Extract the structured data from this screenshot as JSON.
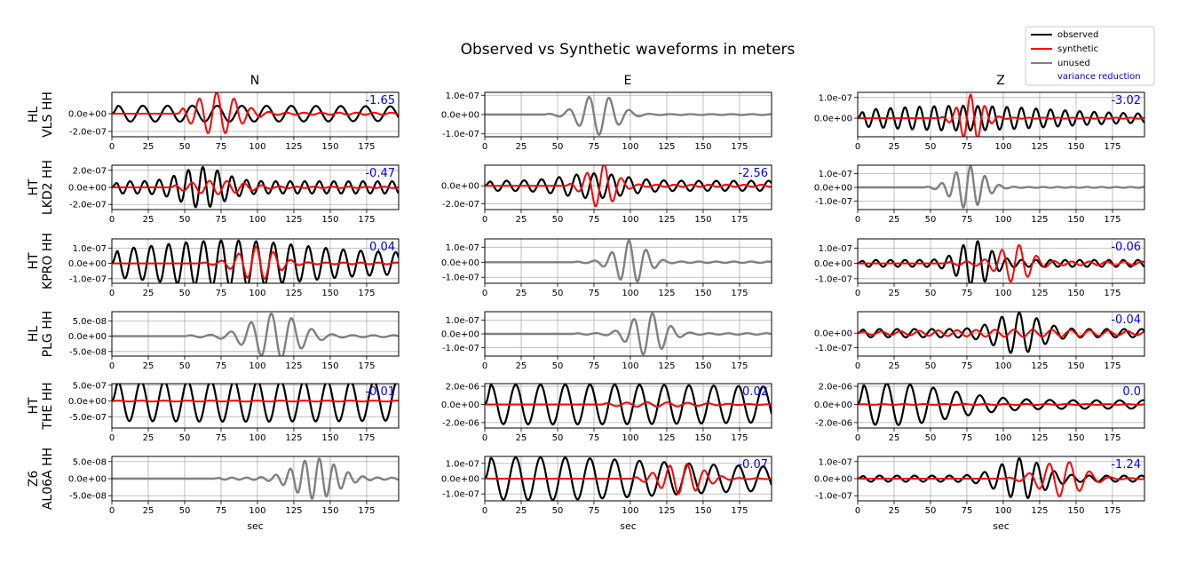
{
  "title": "Observed vs Synthetic waveforms in meters",
  "column_titles": [
    "N",
    "E",
    "Z"
  ],
  "x_label": "sec",
  "legend": {
    "observed": "observed",
    "synthetic": "synthetic",
    "unused": "unused",
    "variance_reduction": "variance reduction"
  },
  "colors": {
    "observed": "#000000",
    "synthetic": "#ff0000",
    "unused": "#808080",
    "variance_reduction": "#0000ff",
    "grid": "#b0b0b0"
  },
  "chart_data": {
    "type": "line",
    "x_range": [
      0,
      197
    ],
    "x_ticks": [
      0,
      25,
      50,
      75,
      100,
      125,
      150,
      175
    ],
    "x_tick_labels": [
      "0",
      "25",
      "50",
      "75",
      "100",
      "125",
      "150",
      "175"
    ],
    "grid": true,
    "legend_position": "top-right",
    "stations": [
      {
        "label_line1": "HL",
        "label_line2": "VLS HH",
        "panels": [
          {
            "component": "N",
            "used": true,
            "vr": "-1.65",
            "y_ticks": [
              0,
              -2e-07
            ],
            "y_tick_labels": [
              "0.0e+00",
              "-2.0e-07"
            ],
            "ylim": [
              -2.6e-07,
              2.4e-07
            ],
            "observed": {
              "amp": 9e-08,
              "period": 17,
              "start": 0,
              "peak": 55,
              "width": 180,
              "base": 0.7
            },
            "synthetic": {
              "amp": 2.4e-07,
              "period": 12,
              "start": 45,
              "peak": 72,
              "width": 14,
              "base": 0.05
            }
          },
          {
            "component": "E",
            "used": false,
            "vr": "",
            "y_ticks": [
              1e-07,
              0,
              -1e-07
            ],
            "y_tick_labels": [
              "1.0e-07",
              "0.0e+00",
              "-1.0e-07"
            ],
            "ylim": [
              -1.15e-07,
              1.15e-07
            ],
            "observed": {
              "amp": 1.05e-07,
              "period": 14,
              "start": 40,
              "peak": 78,
              "width": 12,
              "base": 0.02
            }
          },
          {
            "component": "Z",
            "used": true,
            "vr": "-3.02",
            "y_ticks": [
              1e-07,
              0
            ],
            "y_tick_labels": [
              "1.0e-07",
              "0.0e+00"
            ],
            "ylim": [
              -9e-08,
              1.25e-07
            ],
            "observed": {
              "amp": 6e-08,
              "period": 10,
              "start": 0,
              "peak": 70,
              "width": 60,
              "base": 0.3
            },
            "synthetic": {
              "amp": 1.15e-07,
              "period": 10,
              "start": 55,
              "peak": 78,
              "width": 8,
              "base": 0.02
            }
          }
        ]
      },
      {
        "label_line1": "HT",
        "label_line2": "LKD2 HH",
        "panels": [
          {
            "component": "N",
            "used": true,
            "vr": "-0.47",
            "y_ticks": [
              2e-07,
              0,
              -2e-07
            ],
            "y_tick_labels": [
              "2.0e-07",
              "0.0e+00",
              "-2.0e-07"
            ],
            "ylim": [
              -2.6e-07,
              2.6e-07
            ],
            "observed": {
              "amp": 2.4e-07,
              "period": 10,
              "start": 0,
              "peak": 62,
              "width": 14,
              "base": 0.3
            },
            "synthetic": {
              "amp": 8e-08,
              "period": 12,
              "start": 40,
              "peak": 72,
              "width": 18,
              "base": 0.1
            }
          },
          {
            "component": "E",
            "used": true,
            "vr": "-2.56",
            "y_ticks": [
              0,
              -2e-07
            ],
            "y_tick_labels": [
              "0.0e+00",
              "-2.0e-07"
            ],
            "ylim": [
              -2.65e-07,
              2.3e-07
            ],
            "observed": {
              "amp": 1.4e-07,
              "period": 12,
              "start": 0,
              "peak": 75,
              "width": 20,
              "base": 0.4
            },
            "synthetic": {
              "amp": 2.5e-07,
              "period": 12,
              "start": 55,
              "peak": 80,
              "width": 9,
              "base": 0.05
            }
          },
          {
            "component": "Z",
            "used": false,
            "vr": "",
            "y_ticks": [
              1e-07,
              0,
              -1e-07
            ],
            "y_tick_labels": [
              "1.0e-07",
              "0.0e+00",
              "-1.0e-07"
            ],
            "ylim": [
              -1.6e-07,
              1.6e-07
            ],
            "observed": {
              "amp": 1.55e-07,
              "period": 10,
              "start": 45,
              "peak": 76,
              "width": 10,
              "base": 0.02
            }
          }
        ]
      },
      {
        "label_line1": "HT",
        "label_line2": "KPRO HH",
        "panels": [
          {
            "component": "N",
            "used": true,
            "vr": "0.04",
            "y_ticks": [
              1e-07,
              0,
              -1e-07
            ],
            "y_tick_labels": [
              "1.0e-07",
              "0.0e+00",
              "-1.0e-07"
            ],
            "ylim": [
              -1.3e-07,
              1.6e-07
            ],
            "observed": {
              "amp": 1.5e-07,
              "period": 12,
              "start": 0,
              "peak": 80,
              "width": 50,
              "base": 0.45
            },
            "synthetic": {
              "amp": 1.1e-07,
              "period": 12,
              "start": 60,
              "peak": 100,
              "width": 12,
              "base": 0.05
            }
          },
          {
            "component": "E",
            "used": false,
            "vr": "",
            "y_ticks": [
              1e-07,
              0,
              -1e-07
            ],
            "y_tick_labels": [
              "1.0e-07",
              "0.0e+00",
              "-1.0e-07"
            ],
            "ylim": [
              -1.4e-07,
              1.55e-07
            ],
            "observed": {
              "amp": 1.45e-07,
              "period": 12,
              "start": 60,
              "peak": 100,
              "width": 10,
              "base": 0.03
            }
          },
          {
            "component": "Z",
            "used": true,
            "vr": "-0.06",
            "y_ticks": [
              1e-07,
              0,
              -1e-07
            ],
            "y_tick_labels": [
              "1.0e-07",
              "0.0e+00",
              "-1.0e-07"
            ],
            "ylim": [
              -1.3e-07,
              1.6e-07
            ],
            "observed": {
              "amp": 1.5e-07,
              "period": 10,
              "start": 0,
              "peak": 80,
              "width": 10,
              "base": 0.15
            },
            "synthetic": {
              "amp": 1.25e-07,
              "period": 12,
              "start": 60,
              "peak": 108,
              "width": 10,
              "base": 0.1
            }
          }
        ]
      },
      {
        "label_line1": "HL",
        "label_line2": "PLG HH",
        "panels": [
          {
            "component": "N",
            "used": false,
            "vr": "",
            "y_ticks": [
              5e-08,
              0,
              -5e-08
            ],
            "y_tick_labels": [
              "5.0e-08",
              "0.0e+00",
              "-5.0e-08"
            ],
            "ylim": [
              -6.5e-08,
              8e-08
            ],
            "observed": {
              "amp": 7.5e-08,
              "period": 14,
              "start": 50,
              "peak": 112,
              "width": 16,
              "base": 0.04
            }
          },
          {
            "component": "E",
            "used": false,
            "vr": "",
            "y_ticks": [
              1e-07,
              0,
              -1e-07
            ],
            "y_tick_labels": [
              "1.0e-07",
              "0.0e+00",
              "-1.0e-07"
            ],
            "ylim": [
              -1.6e-07,
              1.6e-07
            ],
            "observed": {
              "amp": 1.55e-07,
              "period": 13,
              "start": 60,
              "peak": 112,
              "width": 11,
              "base": 0.03
            }
          },
          {
            "component": "Z",
            "used": true,
            "vr": "-0.04",
            "y_ticks": [
              0,
              -1e-07
            ],
            "y_tick_labels": [
              "0.0e+00",
              "-1.0e-07"
            ],
            "ylim": [
              -1.6e-07,
              1.5e-07
            ],
            "observed": {
              "amp": 1.45e-07,
              "period": 12,
              "start": 0,
              "peak": 110,
              "width": 14,
              "base": 0.2
            },
            "synthetic": {
              "amp": 2.5e-08,
              "period": 13,
              "start": 0,
              "peak": 110,
              "width": 60,
              "base": 0.3
            }
          }
        ]
      },
      {
        "label_line1": "HT",
        "label_line2": "THE HH",
        "panels": [
          {
            "component": "N",
            "used": true,
            "vr": "-0.01",
            "y_ticks": [
              5e-07,
              0,
              -5e-07
            ],
            "y_tick_labels": [
              "5.0e-07",
              "0.0e+00",
              "-5.0e-07"
            ],
            "ylim": [
              -8.5e-07,
              5.5e-07
            ],
            "observed": {
              "amp": 6.5e-07,
              "period": 16,
              "start": 0,
              "peak": 90,
              "width": 200,
              "base": 0.6
            },
            "synthetic": {
              "amp": 1.5e-08,
              "period": 16,
              "start": 0,
              "peak": 90,
              "width": 200,
              "base": 0.5
            }
          },
          {
            "component": "E",
            "used": true,
            "vr": "0.02",
            "y_ticks": [
              2e-06,
              0,
              -2e-06
            ],
            "y_tick_labels": [
              "2.0e-06",
              "0.0e+00",
              "-2.0e-06"
            ],
            "ylim": [
              -2.6e-06,
              2.3e-06
            ],
            "observed": {
              "amp": 2.2e-06,
              "period": 17,
              "start": 0,
              "peak": 60,
              "width": 200,
              "base": 0.5
            },
            "synthetic": {
              "amp": 2.5e-07,
              "period": 14,
              "start": 80,
              "peak": 115,
              "width": 30,
              "base": 0.1
            }
          },
          {
            "component": "Z",
            "used": true,
            "vr": "0.0",
            "y_ticks": [
              2e-06,
              0,
              -2e-06
            ],
            "y_tick_labels": [
              "2.0e-06",
              "0.0e+00",
              "-2.0e-06"
            ],
            "ylim": [
              -2.6e-06,
              2.3e-06
            ],
            "observed": {
              "amp": 2.3e-06,
              "period": 16,
              "start": 0,
              "peak": 22,
              "width": 40,
              "base": 0.2
            },
            "synthetic": {
              "amp": 5e-08,
              "period": 14,
              "start": 0,
              "peak": 100,
              "width": 80,
              "base": 0.3
            }
          }
        ]
      },
      {
        "label_line1": "Z6",
        "label_line2": "AL06A HH",
        "panels": [
          {
            "component": "N",
            "used": false,
            "vr": "",
            "y_ticks": [
              5e-08,
              0,
              -5e-08
            ],
            "y_tick_labels": [
              "5.0e-08",
              "0.0e+00",
              "-5.0e-08"
            ],
            "ylim": [
              -6.5e-08,
              6.5e-08
            ],
            "observed": {
              "amp": 6e-08,
              "period": 10,
              "start": 70,
              "peak": 140,
              "width": 14,
              "base": 0.05
            }
          },
          {
            "component": "E",
            "used": true,
            "vr": "-0.07",
            "y_ticks": [
              1e-07,
              0,
              -1e-07
            ],
            "y_tick_labels": [
              "1.0e-07",
              "0.0e+00",
              "-1.0e-07"
            ],
            "ylim": [
              -1.45e-07,
              1.45e-07
            ],
            "observed": {
              "amp": 1.4e-07,
              "period": 17,
              "start": 0,
              "peak": 35,
              "width": 80,
              "base": 0.5
            },
            "synthetic": {
              "amp": 1e-07,
              "period": 12,
              "start": 100,
              "peak": 135,
              "width": 14,
              "base": 0.03
            }
          },
          {
            "component": "Z",
            "used": true,
            "vr": "-1.24",
            "y_ticks": [
              1e-07,
              0,
              -1e-07
            ],
            "y_tick_labels": [
              "1.0e-07",
              "0.0e+00",
              "-1.0e-07"
            ],
            "ylim": [
              -1.3e-07,
              1.3e-07
            ],
            "observed": {
              "amp": 1.2e-07,
              "period": 12,
              "start": 0,
              "peak": 112,
              "width": 14,
              "base": 0.15
            },
            "synthetic": {
              "amp": 1.05e-07,
              "period": 14,
              "start": 100,
              "peak": 140,
              "width": 14,
              "base": 0.03
            }
          }
        ]
      }
    ]
  }
}
